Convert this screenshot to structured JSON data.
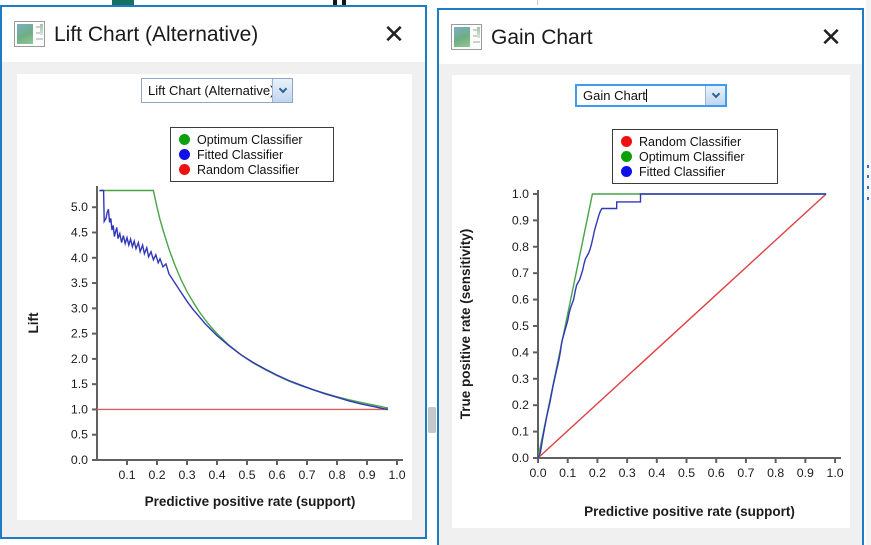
{
  "icons": {
    "close": "✕"
  },
  "left_window": {
    "title": "Lift Chart (Alternative)",
    "dropdown_value": "Lift Chart (Alternative)",
    "legend": [
      {
        "label": "Optimum Classifier",
        "color": "#0ca10c"
      },
      {
        "label": "Fitted Classifier",
        "color": "#1010e8"
      },
      {
        "label": "Random Classifier",
        "color": "#ef1111"
      }
    ]
  },
  "right_window": {
    "title": "Gain Chart",
    "dropdown_value": "Gain Chart",
    "legend": [
      {
        "label": "Random Classifier",
        "color": "#ef1111"
      },
      {
        "label": "Optimum Classifier",
        "color": "#0ca10c"
      },
      {
        "label": "Fitted Classifier",
        "color": "#1010e8"
      }
    ]
  },
  "chart_data": [
    {
      "type": "line",
      "title": "Lift Chart (Alternative)",
      "xlabel": "Predictive positive rate (support)",
      "ylabel": "Lift",
      "xlim": [
        0,
        1.02
      ],
      "ylim": [
        0,
        5.42
      ],
      "grid": false,
      "legend_position": "top-center",
      "size": [
        395,
        340
      ],
      "margin": {
        "l": 80,
        "r": 9,
        "t": 11,
        "b": 55
      },
      "ylabel_x": 21,
      "xticks": {
        "values": [
          0.1,
          0.2,
          0.3,
          0.4,
          0.5,
          0.6,
          0.7,
          0.8,
          0.9,
          1.0
        ],
        "labels": [
          "0.1",
          "0.2",
          "0.3",
          "0.4",
          "0.5",
          "0.6",
          "0.7",
          "0.8",
          "0.9",
          "1.0"
        ]
      },
      "yticks": {
        "values": [
          0,
          0.5,
          1.0,
          1.5,
          2.0,
          2.5,
          3.0,
          3.5,
          4.0,
          4.5,
          5.0
        ],
        "labels": [
          "0.0",
          "0.5",
          "1.0",
          "1.5",
          "2.0",
          "2.5",
          "3.0",
          "3.5",
          "4.0",
          "4.5",
          "5.0"
        ]
      },
      "series": [
        {
          "name": "Random Classifier",
          "color": "#d96060",
          "points": [
            [
              0.0,
              1.0
            ],
            [
              0.97,
              1.0
            ]
          ]
        },
        {
          "name": "Optimum Classifier",
          "color": "#47a447",
          "points": [
            [
              0.008,
              5.33
            ],
            [
              0.188,
              5.33
            ],
            [
              0.2,
              5.0
            ],
            [
              0.21,
              4.76
            ],
            [
              0.22,
              4.55
            ],
            [
              0.24,
              4.17
            ],
            [
              0.26,
              3.85
            ],
            [
              0.28,
              3.57
            ],
            [
              0.3,
              3.33
            ],
            [
              0.32,
              3.13
            ],
            [
              0.34,
              2.94
            ],
            [
              0.36,
              2.78
            ],
            [
              0.38,
              2.63
            ],
            [
              0.4,
              2.5
            ],
            [
              0.44,
              2.27
            ],
            [
              0.48,
              2.08
            ],
            [
              0.52,
              1.92
            ],
            [
              0.56,
              1.79
            ],
            [
              0.6,
              1.67
            ],
            [
              0.64,
              1.56
            ],
            [
              0.68,
              1.47
            ],
            [
              0.72,
              1.39
            ],
            [
              0.76,
              1.32
            ],
            [
              0.8,
              1.25
            ],
            [
              0.84,
              1.19
            ],
            [
              0.88,
              1.14
            ],
            [
              0.92,
              1.09
            ],
            [
              0.96,
              1.04
            ],
            [
              0.97,
              1.03
            ]
          ]
        },
        {
          "name": "Fitted Classifier",
          "color": "#3038b8",
          "points": [
            [
              0.008,
              5.33
            ],
            [
              0.022,
              5.33
            ],
            [
              0.024,
              4.72
            ],
            [
              0.03,
              4.78
            ],
            [
              0.034,
              4.9
            ],
            [
              0.038,
              4.96
            ],
            [
              0.042,
              4.7
            ],
            [
              0.046,
              4.78
            ],
            [
              0.05,
              4.55
            ],
            [
              0.054,
              4.64
            ],
            [
              0.058,
              4.42
            ],
            [
              0.062,
              4.52
            ],
            [
              0.066,
              4.6
            ],
            [
              0.07,
              4.38
            ],
            [
              0.076,
              4.48
            ],
            [
              0.082,
              4.3
            ],
            [
              0.088,
              4.44
            ],
            [
              0.094,
              4.28
            ],
            [
              0.1,
              4.4
            ],
            [
              0.106,
              4.25
            ],
            [
              0.112,
              4.37
            ],
            [
              0.118,
              4.22
            ],
            [
              0.124,
              4.33
            ],
            [
              0.13,
              4.18
            ],
            [
              0.138,
              4.3
            ],
            [
              0.144,
              4.12
            ],
            [
              0.152,
              4.25
            ],
            [
              0.158,
              4.08
            ],
            [
              0.166,
              4.2
            ],
            [
              0.172,
              4.02
            ],
            [
              0.18,
              4.12
            ],
            [
              0.188,
              3.96
            ],
            [
              0.196,
              4.06
            ],
            [
              0.204,
              3.9
            ],
            [
              0.21,
              3.98
            ],
            [
              0.22,
              3.82
            ],
            [
              0.23,
              3.88
            ],
            [
              0.24,
              3.68
            ],
            [
              0.26,
              3.5
            ],
            [
              0.28,
              3.32
            ],
            [
              0.3,
              3.14
            ],
            [
              0.32,
              2.98
            ],
            [
              0.34,
              2.84
            ],
            [
              0.36,
              2.7
            ],
            [
              0.38,
              2.58
            ],
            [
              0.4,
              2.46
            ],
            [
              0.44,
              2.26
            ],
            [
              0.48,
              2.08
            ],
            [
              0.52,
              1.93
            ],
            [
              0.56,
              1.8
            ],
            [
              0.6,
              1.68
            ],
            [
              0.64,
              1.57
            ],
            [
              0.68,
              1.48
            ],
            [
              0.72,
              1.39
            ],
            [
              0.76,
              1.31
            ],
            [
              0.8,
              1.24
            ],
            [
              0.84,
              1.17
            ],
            [
              0.88,
              1.11
            ],
            [
              0.92,
              1.06
            ],
            [
              0.95,
              1.02
            ],
            [
              0.97,
              1.0
            ]
          ]
        }
      ]
    },
    {
      "type": "line",
      "title": "Gain Chart",
      "xlabel": "Predictive positive rate (support)",
      "ylabel": "True positive rate (sensitivity)",
      "xlim": [
        0,
        1.02
      ],
      "ylim": [
        0,
        1.015
      ],
      "grid": false,
      "legend_position": "top-center",
      "size": [
        400,
        350
      ],
      "margin": {
        "l": 83,
        "r": 14,
        "t": 15,
        "b": 67
      },
      "ylabel_x": 15,
      "xticks": {
        "values": [
          0,
          0.1,
          0.2,
          0.3,
          0.4,
          0.5,
          0.6,
          0.7,
          0.8,
          0.9,
          1.0
        ],
        "labels": [
          "0.0",
          "0.1",
          "0.2",
          "0.3",
          "0.4",
          "0.5",
          "0.6",
          "0.7",
          "0.8",
          "0.9",
          "1.0"
        ]
      },
      "yticks": {
        "values": [
          0,
          0.1,
          0.2,
          0.3,
          0.4,
          0.5,
          0.6,
          0.7,
          0.8,
          0.9,
          1.0
        ],
        "labels": [
          "0.0",
          "0.1",
          "0.2",
          "0.3",
          "0.4",
          "0.5",
          "0.6",
          "0.7",
          "0.8",
          "0.9",
          "1.0"
        ]
      },
      "series": [
        {
          "name": "Random Classifier",
          "color": "#e04040",
          "points": [
            [
              0,
              0
            ],
            [
              0.97,
              1.0
            ]
          ]
        },
        {
          "name": "Optimum Classifier",
          "color": "#47a447",
          "points": [
            [
              0,
              0
            ],
            [
              0.183,
              1.0
            ],
            [
              0.97,
              1.0
            ]
          ]
        },
        {
          "name": "Fitted Classifier",
          "color": "#3038b8",
          "points": [
            [
              0,
              0
            ],
            [
              0.008,
              0.02
            ],
            [
              0.015,
              0.07
            ],
            [
              0.02,
              0.1
            ],
            [
              0.03,
              0.16
            ],
            [
              0.04,
              0.21
            ],
            [
              0.045,
              0.24
            ],
            [
              0.05,
              0.27
            ],
            [
              0.06,
              0.32
            ],
            [
              0.07,
              0.37
            ],
            [
              0.075,
              0.4
            ],
            [
              0.08,
              0.44
            ],
            [
              0.09,
              0.48
            ],
            [
              0.095,
              0.5
            ],
            [
              0.1,
              0.52
            ],
            [
              0.105,
              0.55
            ],
            [
              0.11,
              0.57
            ],
            [
              0.12,
              0.6
            ],
            [
              0.125,
              0.63
            ],
            [
              0.13,
              0.655
            ],
            [
              0.14,
              0.675
            ],
            [
              0.15,
              0.71
            ],
            [
              0.155,
              0.735
            ],
            [
              0.16,
              0.755
            ],
            [
              0.17,
              0.775
            ],
            [
              0.175,
              0.79
            ],
            [
              0.18,
              0.81
            ],
            [
              0.185,
              0.835
            ],
            [
              0.19,
              0.86
            ],
            [
              0.195,
              0.88
            ],
            [
              0.2,
              0.9
            ],
            [
              0.205,
              0.92
            ],
            [
              0.21,
              0.935
            ],
            [
              0.215,
              0.945
            ],
            [
              0.265,
              0.945
            ],
            [
              0.265,
              0.97
            ],
            [
              0.345,
              0.97
            ],
            [
              0.345,
              1.0
            ],
            [
              0.97,
              1.0
            ]
          ]
        }
      ]
    }
  ]
}
